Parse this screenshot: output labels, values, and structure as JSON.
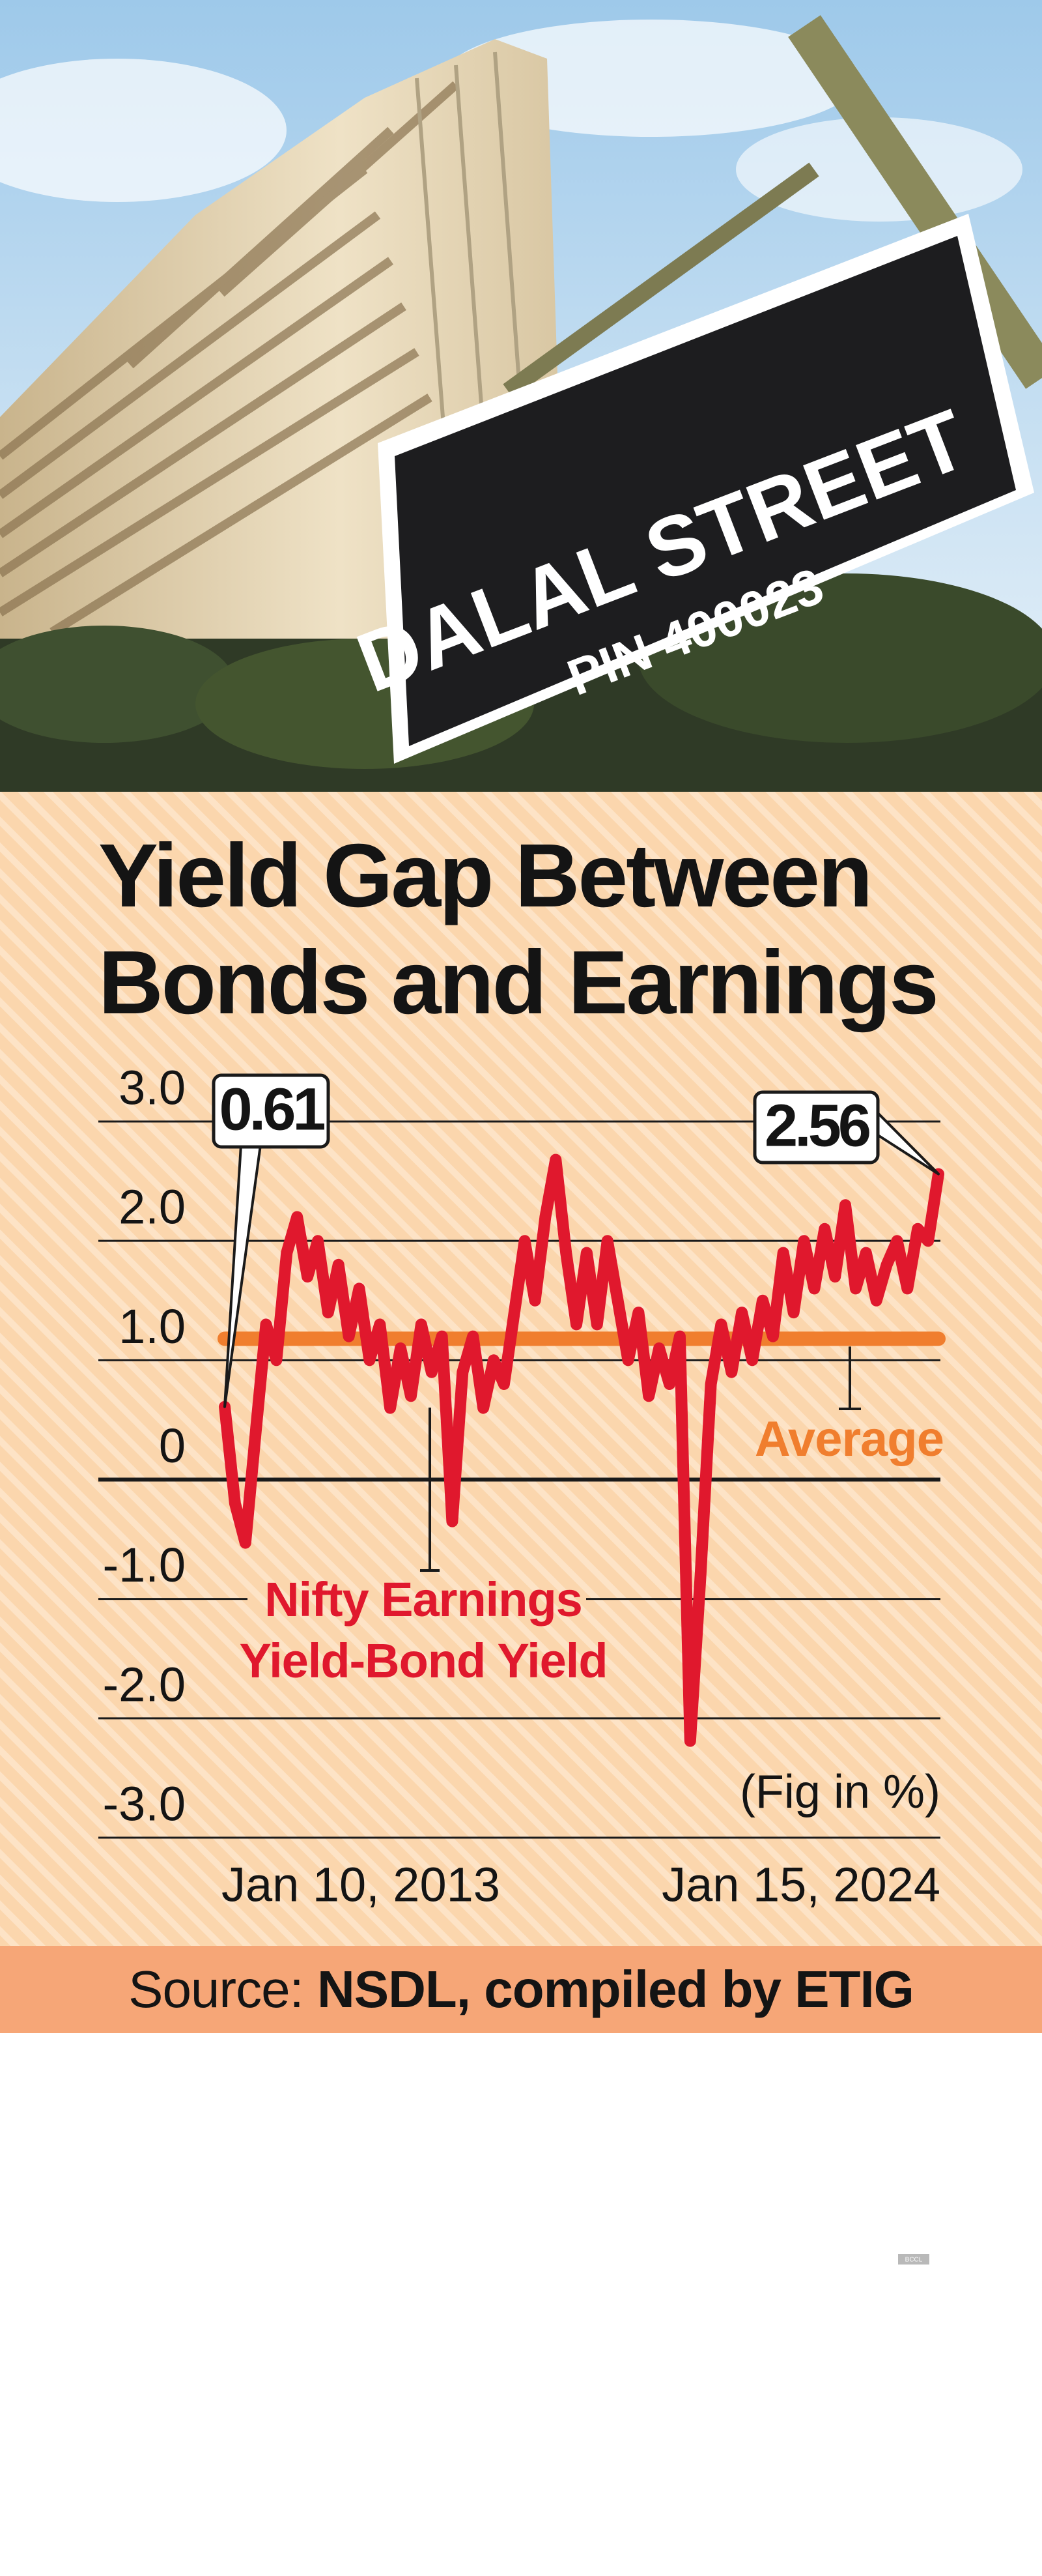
{
  "photo": {
    "sign": "DALAL STREET",
    "pin": "PIN 400023"
  },
  "watermark": "BCCL",
  "chart_data": {
    "type": "line",
    "title": "Yield Gap Between Bonds and Earnings",
    "categories": [
      "Jan 10, 2013",
      null,
      null,
      null,
      null,
      null,
      null,
      null,
      null,
      null,
      null,
      null,
      null,
      null,
      null,
      null,
      null,
      null,
      null,
      null,
      null,
      null,
      null,
      null,
      null,
      null,
      null,
      null,
      null,
      null,
      null,
      null,
      null,
      null,
      null,
      null,
      null,
      null,
      null,
      null,
      null,
      null,
      null,
      null,
      null,
      null,
      null,
      null,
      null,
      null,
      null,
      null,
      null,
      null,
      null,
      null,
      null,
      null,
      null,
      null,
      null,
      null,
      null,
      null,
      null,
      null,
      null,
      null,
      null,
      "Jan 15, 2024"
    ],
    "series": [
      {
        "name": "Nifty Earnings Yield-Bond Yield",
        "color": "#e0182d",
        "values": [
          0.61,
          -0.2,
          -0.53,
          0.4,
          1.3,
          1.0,
          1.9,
          2.2,
          1.7,
          2.0,
          1.4,
          1.8,
          1.2,
          1.6,
          1.0,
          1.3,
          0.6,
          1.1,
          0.7,
          1.3,
          0.9,
          1.2,
          -0.35,
          0.9,
          1.2,
          0.6,
          1.0,
          0.8,
          1.4,
          2.0,
          1.5,
          2.2,
          2.68,
          1.9,
          1.3,
          1.9,
          1.3,
          2.0,
          1.5,
          1.0,
          1.4,
          0.7,
          1.1,
          0.8,
          1.2,
          -2.19,
          -0.8,
          0.8,
          1.3,
          0.9,
          1.4,
          1.0,
          1.5,
          1.2,
          1.9,
          1.4,
          2.0,
          1.6,
          2.1,
          1.7,
          2.3,
          1.6,
          1.9,
          1.5,
          1.8,
          2.0,
          1.6,
          2.1,
          2.0,
          2.56
        ]
      }
    ],
    "average": {
      "label": "Average",
      "value": 1.18,
      "color": "#f07e2e"
    },
    "ylim": [
      -3,
      3
    ],
    "yticks": [
      {
        "value": 3,
        "label": "3.0"
      },
      {
        "value": 2,
        "label": "2.0"
      },
      {
        "value": 1,
        "label": "1.0"
      },
      0,
      {
        "value": -1,
        "label": "-1.0"
      },
      {
        "value": -2,
        "label": "-2.0"
      },
      {
        "value": -3,
        "label": "-3.0"
      }
    ],
    "grid": true,
    "unit_note": "(Fig in %)",
    "source_label": "Source:",
    "source": "NSDL, compiled by ETIG"
  }
}
